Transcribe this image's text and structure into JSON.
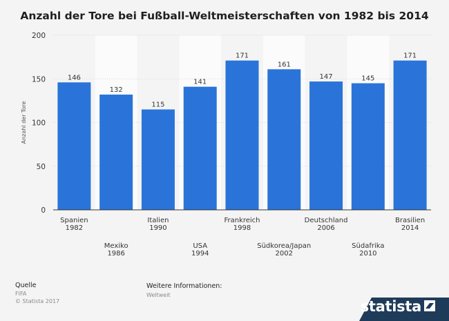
{
  "chart_data": {
    "type": "bar",
    "title": "Anzahl der Tore bei Fußball-Weltmeisterschaften von 1982 bis 2014",
    "ylabel": "Anzahl der Tore",
    "xlabel": "",
    "ylim": [
      0,
      200
    ],
    "yticks": [
      0,
      50,
      100,
      150,
      200
    ],
    "categories": [
      {
        "name": "Spanien",
        "year": "1982"
      },
      {
        "name": "Mexiko",
        "year": "1986"
      },
      {
        "name": "Italien",
        "year": "1990"
      },
      {
        "name": "USA",
        "year": "1994"
      },
      {
        "name": "Frankreich",
        "year": "1998"
      },
      {
        "name": "Südkorea/Japan",
        "year": "2002"
      },
      {
        "name": "Deutschland",
        "year": "2006"
      },
      {
        "name": "Südafrika",
        "year": "2010"
      },
      {
        "name": "Brasilien",
        "year": "2014"
      }
    ],
    "values": [
      146,
      132,
      115,
      141,
      171,
      161,
      147,
      145,
      171
    ],
    "bar_color": "#2a74d9",
    "grid": true
  },
  "footer": {
    "source_label": "Quelle",
    "source_value": "FIFA",
    "copyright": "© Statista 2017",
    "info_label": "Weitere Informationen:",
    "info_value": "Weltweit"
  },
  "logo": {
    "text": "statista",
    "icon": "statista-logo-icon",
    "background": "#1f3b5a"
  }
}
